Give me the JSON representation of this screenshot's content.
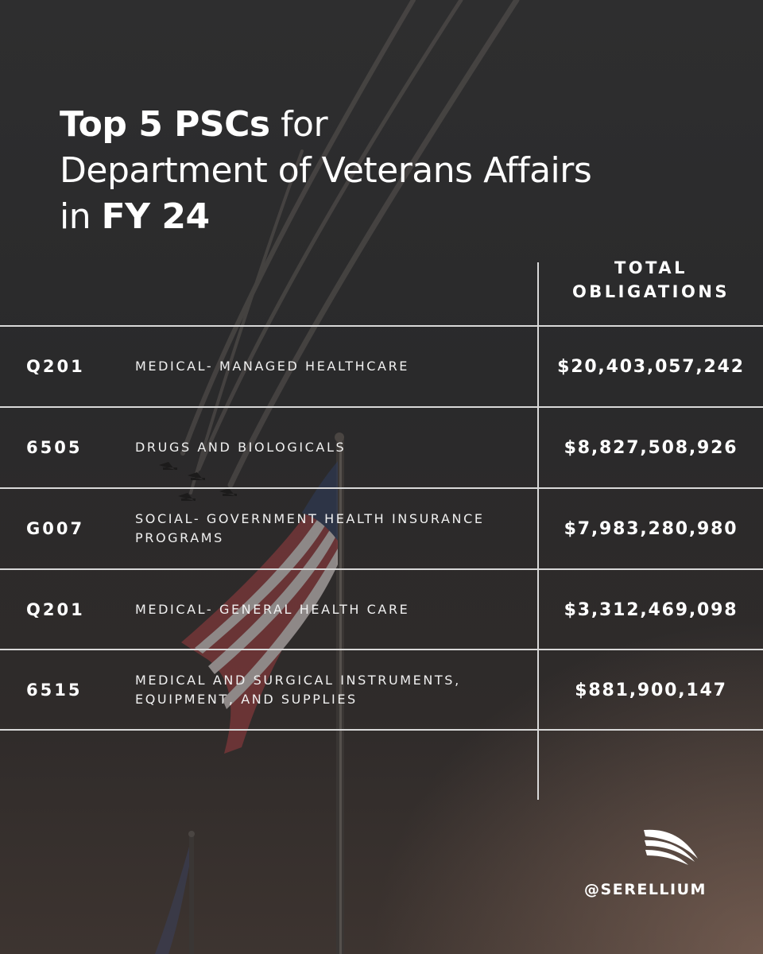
{
  "title": {
    "line1_bold": "Top 5 PSCs",
    "line1_rest": " for",
    "line2": "Department of Veterans Affairs",
    "line3_prefix": "in ",
    "line3_bold": "FY 24"
  },
  "table": {
    "column_header_line1": "TOTAL",
    "column_header_line2": "OBLIGATIONS",
    "rows": [
      {
        "code": "Q201",
        "description_line1": "MEDICAL- MANAGED HEALTHCARE",
        "description_line2": "",
        "amount": "$20,403,057,242"
      },
      {
        "code": "6505",
        "description_line1": "DRUGS AND BIOLOGICALS",
        "description_line2": "",
        "amount": "$8,827,508,926"
      },
      {
        "code": "G007",
        "description_line1": "SOCIAL- GOVERNMENT HEALTH INSURANCE",
        "description_line2": "PROGRAMS",
        "amount": "$7,983,280,980"
      },
      {
        "code": "Q201",
        "description_line1": "MEDICAL- GENERAL HEALTH CARE",
        "description_line2": "",
        "amount": "$3,312,469,098"
      },
      {
        "code": "6515",
        "description_line1": "MEDICAL AND SURGICAL INSTRUMENTS,",
        "description_line2": "EQUIPMENT, AND SUPPLIES",
        "amount": "$881,900,147"
      }
    ]
  },
  "brand": {
    "handle": "@SERELLIUM",
    "logo_icon": "sail-wave-icon"
  },
  "colors": {
    "text": "#ffffff",
    "rule": "#d9d9d9",
    "background": "#2c2c2d"
  }
}
